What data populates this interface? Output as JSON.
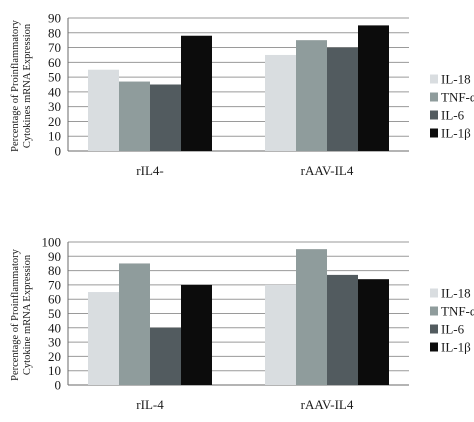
{
  "chart_data": [
    {
      "type": "bar",
      "categories": [
        "rIL4-",
        "rAAV-IL4"
      ],
      "series": [
        {
          "name": "IL-18",
          "values": [
            55,
            65
          ],
          "color": "#d9dde0"
        },
        {
          "name": "TNF-α",
          "values": [
            47,
            75
          ],
          "color": "#8f9c9c"
        },
        {
          "name": "IL-6",
          "values": [
            45,
            70
          ],
          "color": "#525b5f"
        },
        {
          "name": "IL-1β",
          "values": [
            78,
            85
          ],
          "color": "#0c0c0c"
        }
      ],
      "ylabel_lines": [
        "Percentage of Proinflammatory",
        "Cytokines mRNA Expression"
      ],
      "ylim": [
        0,
        90
      ],
      "yticks": [
        0,
        10,
        20,
        30,
        40,
        50,
        60,
        70,
        80,
        90
      ],
      "grid": true,
      "legend": "right"
    },
    {
      "type": "bar",
      "categories": [
        "rIL-4",
        "rAAV-IL4"
      ],
      "series": [
        {
          "name": "IL-18",
          "values": [
            65,
            70
          ],
          "color": "#d9dde0"
        },
        {
          "name": "TNF-α",
          "values": [
            85,
            95
          ],
          "color": "#8f9c9c"
        },
        {
          "name": "IL-6",
          "values": [
            40,
            77
          ],
          "color": "#525b5f"
        },
        {
          "name": "IL-1β",
          "values": [
            70,
            74
          ],
          "color": "#0c0c0c"
        }
      ],
      "ylabel_lines": [
        "Percentage of Proinflammatory",
        "Cytokine mRNA Expression"
      ],
      "ylim": [
        0,
        100
      ],
      "yticks": [
        0,
        10,
        20,
        30,
        40,
        50,
        60,
        70,
        80,
        90,
        100
      ],
      "grid": true,
      "legend": "right"
    }
  ]
}
